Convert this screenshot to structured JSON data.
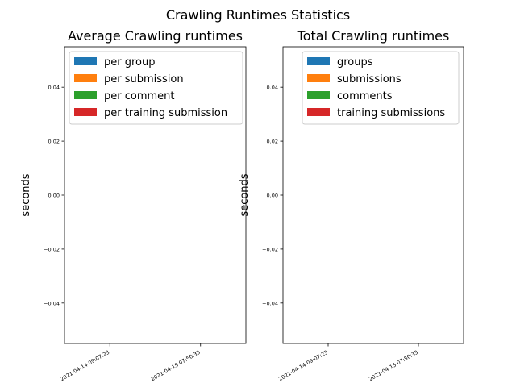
{
  "figure_title": "Crawling Runtimes Statistics",
  "chart_data": [
    {
      "type": "bar",
      "title": "Average Crawling runtimes",
      "xlabel": "",
      "ylabel": "seconds",
      "categories": [
        "2021-04-14 09:07:23",
        "2021-04-15 07:50:33"
      ],
      "ylim": [
        -0.055,
        0.055
      ],
      "yticks": [
        "0.04",
        "0.02",
        "0.00",
        "−0.02",
        "−0.04"
      ],
      "ytick_values": [
        0.04,
        0.02,
        0.0,
        -0.02,
        -0.04
      ],
      "legend_position": "top-left",
      "series": [
        {
          "name": "per group",
          "color": "#1f77b4",
          "values": [
            null,
            null
          ]
        },
        {
          "name": "per submission",
          "color": "#ff7f0e",
          "values": [
            null,
            null
          ]
        },
        {
          "name": "per comment",
          "color": "#2ca02c",
          "values": [
            null,
            null
          ]
        },
        {
          "name": "per training submission",
          "color": "#d62728",
          "values": [
            null,
            null
          ]
        }
      ]
    },
    {
      "type": "bar",
      "title": "Total Crawling runtimes",
      "xlabel": "",
      "ylabel": "seconds",
      "categories": [
        "2021-04-14 09:07:23",
        "2021-04-15 07:50:33"
      ],
      "ylim": [
        -0.055,
        0.055
      ],
      "yticks": [
        "0.04",
        "0.02",
        "0.00",
        "−0.02",
        "−0.04"
      ],
      "ytick_values": [
        0.04,
        0.02,
        0.0,
        -0.02,
        -0.04
      ],
      "legend_position": "top-right",
      "series": [
        {
          "name": "groups",
          "color": "#1f77b4",
          "values": [
            null,
            null
          ]
        },
        {
          "name": "submissions",
          "color": "#ff7f0e",
          "values": [
            null,
            null
          ]
        },
        {
          "name": "comments",
          "color": "#2ca02c",
          "values": [
            null,
            null
          ]
        },
        {
          "name": "training submissions",
          "color": "#d62728",
          "values": [
            null,
            null
          ]
        }
      ]
    }
  ]
}
